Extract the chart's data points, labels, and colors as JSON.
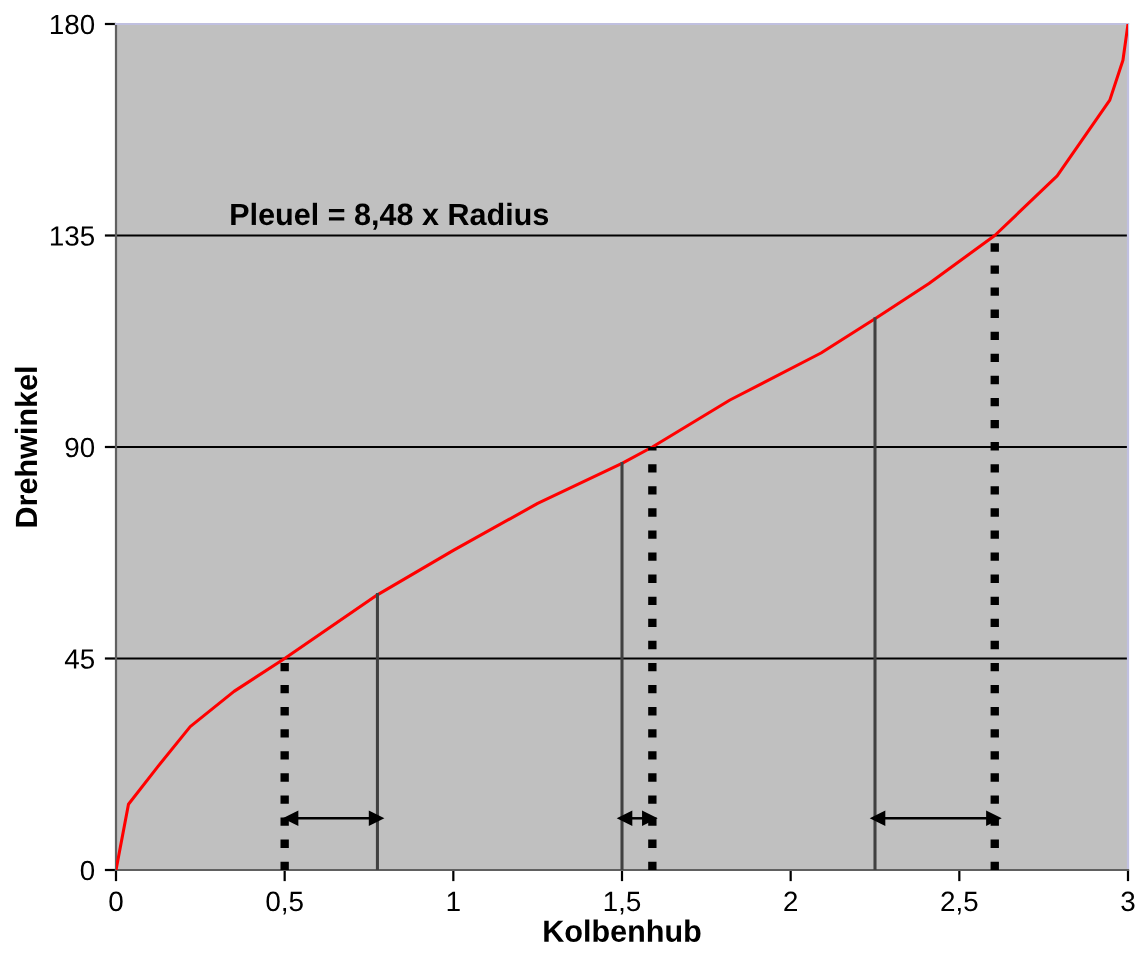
{
  "chart_data": {
    "type": "line",
    "xlabel": "Kolbenhub",
    "ylabel": "Drehwinkel",
    "xlim": [
      0,
      3
    ],
    "ylim": [
      0,
      180
    ],
    "xticks": [
      0,
      {
        "value": 0.5,
        "label": "0,5"
      },
      1,
      {
        "value": 1.5,
        "label": "1,5"
      },
      2,
      {
        "value": 2.5,
        "label": "2,5"
      },
      3
    ],
    "yticks": [
      0,
      45,
      90,
      135,
      180
    ],
    "grid": "y",
    "legend": false,
    "annotations": [
      "Pleuel = 8,48 x Radius"
    ],
    "series": [
      {
        "color": "#ff0000",
        "line_style": "solid",
        "x": [
          0,
          0.037,
          0.124,
          0.22,
          0.35,
          0.5,
          0.776,
          1.0,
          1.25,
          1.5,
          1.59,
          1.82,
          2.09,
          2.25,
          2.41,
          2.605,
          2.79,
          2.946,
          2.985,
          3
        ],
        "values": [
          0,
          14,
          22,
          30.5,
          38,
          45,
          58.6,
          68,
          78,
          86.5,
          90,
          100,
          110,
          117.3,
          124.8,
          135,
          147.7,
          163.8,
          172.3,
          180
        ]
      },
      {
        "color": "#000000",
        "line_style": "dotted",
        "x": [
          0.5,
          0.5
        ],
        "values": [
          0,
          45
        ]
      },
      {
        "color": "#000000",
        "line_style": "dotted",
        "x": [
          1.59,
          1.59
        ],
        "values": [
          0,
          90
        ]
      },
      {
        "color": "#000000",
        "line_style": "dotted",
        "x": [
          2.605,
          2.605
        ],
        "values": [
          0,
          135
        ]
      },
      {
        "color": "#404040",
        "line_style": "solid",
        "x": [
          0.775,
          0.775
        ],
        "values": [
          0,
          58.6
        ]
      },
      {
        "color": "#404040",
        "line_style": "solid",
        "x": [
          1.5,
          1.5
        ],
        "values": [
          0,
          86.5
        ]
      },
      {
        "color": "#404040",
        "line_style": "solid",
        "x": [
          2.25,
          2.25
        ],
        "values": [
          0,
          117.3
        ]
      },
      {
        "color": "#000000",
        "line_style": "solid",
        "marker": "triangle",
        "x": [
          0.52,
          0.77
        ],
        "values": [
          11,
          11
        ]
      },
      {
        "color": "#000000",
        "line_style": "solid",
        "marker": "triangle",
        "x": [
          1.51,
          1.58
        ],
        "values": [
          11,
          11
        ]
      },
      {
        "color": "#000000",
        "line_style": "solid",
        "marker": "triangle",
        "x": [
          2.26,
          2.6
        ],
        "values": [
          11,
          11
        ]
      }
    ]
  }
}
